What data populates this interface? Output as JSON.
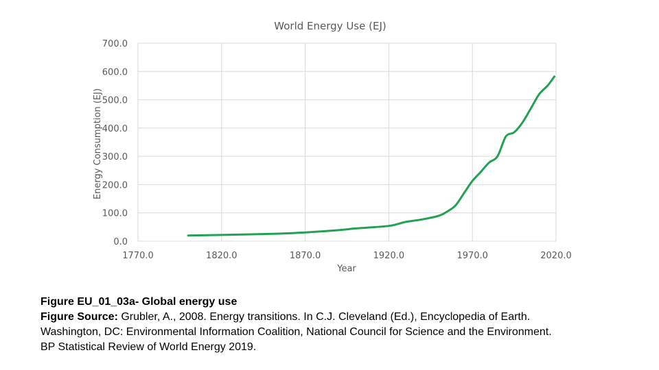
{
  "chart_data": {
    "type": "line",
    "title": "World Energy Use (EJ)",
    "xlabel": "Year",
    "ylabel": "Energy Consumption (EJ)",
    "xlim": [
      1770,
      2020
    ],
    "ylim": [
      0,
      700
    ],
    "x_ticks": [
      "1770.0",
      "1820.0",
      "1870.0",
      "1920.0",
      "1970.0",
      "2020.0"
    ],
    "y_ticks": [
      "0.0",
      "100.0",
      "200.0",
      "300.0",
      "400.0",
      "500.0",
      "600.0",
      "700.0"
    ],
    "grid": true,
    "legend": "none",
    "series": [
      {
        "color": "#22a152",
        "x": [
          1800,
          1820,
          1850,
          1870,
          1890,
          1900,
          1910,
          1920,
          1925,
          1930,
          1940,
          1950,
          1955,
          1960,
          1965,
          1970,
          1975,
          1980,
          1985,
          1990,
          1995,
          2000,
          2005,
          2010,
          2015,
          2019
        ],
        "y": [
          20,
          22,
          26,
          31,
          39,
          45,
          49,
          54,
          60,
          68,
          77,
          90,
          105,
          127,
          170,
          213,
          245,
          278,
          300,
          370,
          385,
          420,
          470,
          520,
          550,
          582
        ]
      }
    ]
  },
  "caption": {
    "figure_label": "Figure EU_01_03a- Global energy use",
    "source_label": "Figure Source:",
    "source_text": " Grubler, A., 2008. Energy transitions. In C.J. Cleveland (Ed.), Encyclopedia of Earth.",
    "line3": "Washington, DC: Environmental Information Coalition, National Council for Science and the Environment.",
    "line4": "BP Statistical Review of World Energy 2019."
  }
}
